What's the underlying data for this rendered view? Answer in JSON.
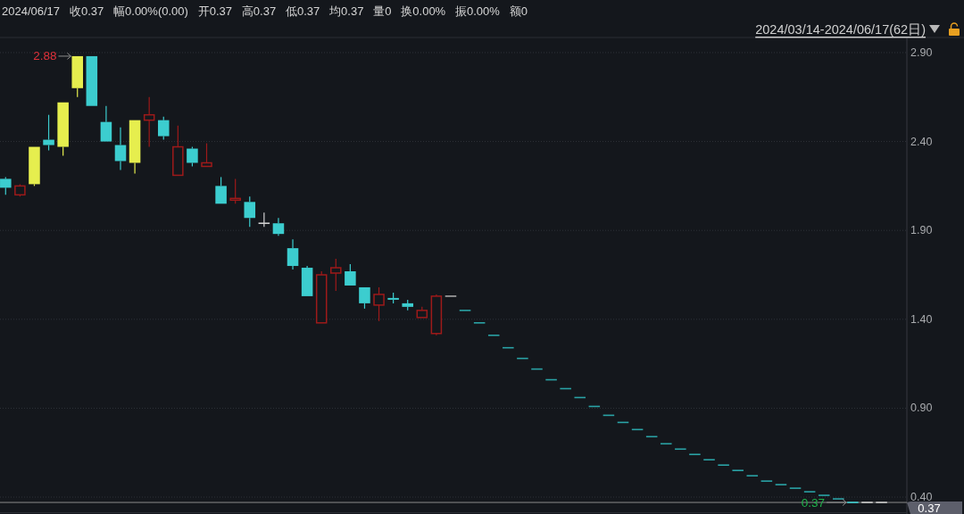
{
  "chart_data": {
    "type": "candlestick",
    "title": "2024/06/17   收0.37   幅0.00%(0.00)   开0.37   高0.37   低0.37   均0.37   量0   换0.00%   振0.00%   额0",
    "subtitle": "2024/03/14-2024/06/17(62日)",
    "categories": [
      null,
      null,
      null,
      null,
      null,
      null,
      null,
      null,
      null,
      null,
      null,
      null,
      null,
      null,
      null,
      null,
      null,
      null,
      null,
      null,
      null,
      null,
      null,
      null,
      null,
      null,
      null,
      null,
      null,
      null,
      null,
      null,
      null,
      null,
      null,
      null,
      null,
      null,
      null,
      null,
      null,
      null,
      null,
      null,
      null,
      null,
      null,
      null,
      null,
      null,
      null,
      null,
      null,
      null,
      null,
      null,
      null,
      null,
      null,
      null,
      null,
      null
    ],
    "ohlc": [
      [
        2.19,
        2.2,
        2.1,
        2.14
      ],
      [
        2.1,
        2.16,
        2.09,
        2.15
      ],
      [
        2.16,
        2.37,
        2.15,
        2.37
      ],
      [
        2.41,
        2.55,
        2.35,
        2.38
      ],
      [
        2.37,
        2.62,
        2.32,
        2.62
      ],
      [
        2.7,
        2.88,
        2.65,
        2.88
      ],
      [
        2.88,
        2.88,
        2.6,
        2.6
      ],
      [
        2.51,
        2.6,
        2.4,
        2.4
      ],
      [
        2.38,
        2.48,
        2.24,
        2.29
      ],
      [
        2.28,
        2.52,
        2.22,
        2.52
      ],
      [
        2.52,
        2.65,
        2.37,
        2.55
      ],
      [
        2.52,
        2.54,
        2.41,
        2.43
      ],
      [
        2.21,
        2.49,
        2.21,
        2.37
      ],
      [
        2.36,
        2.37,
        2.26,
        2.28
      ],
      [
        2.26,
        2.39,
        2.26,
        2.28
      ],
      [
        2.15,
        2.2,
        2.05,
        2.05
      ],
      [
        2.07,
        2.19,
        2.05,
        2.08
      ],
      [
        2.06,
        2.09,
        1.92,
        1.97
      ],
      [
        1.94,
        2.0,
        1.92,
        1.94
      ],
      [
        1.94,
        1.97,
        1.87,
        1.88
      ],
      [
        1.8,
        1.85,
        1.68,
        1.7
      ],
      [
        1.69,
        1.7,
        1.53,
        1.53
      ],
      [
        1.38,
        1.67,
        1.38,
        1.65
      ],
      [
        1.66,
        1.74,
        1.56,
        1.69
      ],
      [
        1.67,
        1.71,
        1.59,
        1.59
      ],
      [
        1.58,
        1.58,
        1.46,
        1.49
      ],
      [
        1.48,
        1.58,
        1.39,
        1.54
      ],
      [
        1.52,
        1.55,
        1.49,
        1.51
      ],
      [
        1.49,
        1.51,
        1.45,
        1.47
      ],
      [
        1.41,
        1.47,
        1.41,
        1.45
      ],
      [
        1.32,
        1.54,
        1.31,
        1.53
      ],
      [
        1.53,
        1.53,
        1.53,
        1.53
      ],
      [
        1.45,
        1.45,
        1.45,
        1.45
      ],
      [
        1.38,
        1.38,
        1.38,
        1.38
      ],
      [
        1.31,
        1.31,
        1.31,
        1.31
      ],
      [
        1.24,
        1.24,
        1.24,
        1.24
      ],
      [
        1.18,
        1.18,
        1.18,
        1.18
      ],
      [
        1.12,
        1.12,
        1.12,
        1.12
      ],
      [
        1.06,
        1.06,
        1.06,
        1.06
      ],
      [
        1.01,
        1.01,
        1.01,
        1.01
      ],
      [
        0.96,
        0.96,
        0.96,
        0.96
      ],
      [
        0.91,
        0.91,
        0.91,
        0.91
      ],
      [
        0.86,
        0.86,
        0.86,
        0.86
      ],
      [
        0.82,
        0.82,
        0.82,
        0.82
      ],
      [
        0.78,
        0.78,
        0.78,
        0.78
      ],
      [
        0.74,
        0.74,
        0.74,
        0.74
      ],
      [
        0.7,
        0.7,
        0.7,
        0.7
      ],
      [
        0.67,
        0.67,
        0.67,
        0.67
      ],
      [
        0.64,
        0.64,
        0.64,
        0.64
      ],
      [
        0.61,
        0.61,
        0.61,
        0.61
      ],
      [
        0.58,
        0.58,
        0.58,
        0.58
      ],
      [
        0.55,
        0.55,
        0.55,
        0.55
      ],
      [
        0.52,
        0.52,
        0.52,
        0.52
      ],
      [
        0.49,
        0.49,
        0.49,
        0.49
      ],
      [
        0.47,
        0.47,
        0.47,
        0.47
      ],
      [
        0.45,
        0.45,
        0.45,
        0.45
      ],
      [
        0.43,
        0.43,
        0.43,
        0.43
      ],
      [
        0.41,
        0.41,
        0.41,
        0.41
      ],
      [
        0.39,
        0.39,
        0.39,
        0.39
      ],
      [
        0.37,
        0.37,
        0.37,
        0.37
      ],
      [
        0.37,
        0.37,
        0.37,
        0.37
      ],
      [
        0.37,
        0.37,
        0.37,
        0.37
      ]
    ],
    "colors": [
      "#3ccdcf",
      "#9e1a1a",
      "#e6ee4e",
      "#3ccdcf",
      "#e6ee4e",
      "#e6ee4e",
      "#3ccdcf",
      "#3ccdcf",
      "#3ccdcf",
      "#e6ee4e",
      "#9e1a1a",
      "#3ccdcf",
      "#9e1a1a",
      "#3ccdcf",
      "#9e1a1a",
      "#3ccdcf",
      "#9e1a1a",
      "#3ccdcf",
      "#d0d0d0",
      "#3ccdcf",
      "#3ccdcf",
      "#3ccdcf",
      "#9e1a1a",
      "#9e1a1a",
      "#3ccdcf",
      "#3ccdcf",
      "#9e1a1a",
      "#3ccdcf",
      "#3ccdcf",
      "#9e1a1a",
      "#9e1a1a",
      "#a8a8a8",
      "#2aa3a6",
      "#2aa3a6",
      "#2aa3a6",
      "#2aa3a6",
      "#2aa3a6",
      "#2aa3a6",
      "#2aa3a6",
      "#2aa3a6",
      "#2aa3a6",
      "#2aa3a6",
      "#2aa3a6",
      "#2aa3a6",
      "#2aa3a6",
      "#2aa3a6",
      "#2aa3a6",
      "#2aa3a6",
      "#2aa3a6",
      "#2aa3a6",
      "#2aa3a6",
      "#2aa3a6",
      "#2aa3a6",
      "#2aa3a6",
      "#2aa3a6",
      "#2aa3a6",
      "#2aa3a6",
      "#2aa3a6",
      "#2aa3a6",
      "#3ccdcf",
      "#c8c8c8",
      "#c8c8c8"
    ],
    "ylim": [
      0.32,
      2.97
    ],
    "yticks": [
      {
        "value": 2.9,
        "label": "2.90"
      },
      {
        "value": 2.4,
        "label": "2.40"
      },
      {
        "value": 1.9,
        "label": "1.90"
      },
      {
        "value": 1.4,
        "label": "1.40"
      },
      {
        "value": 0.9,
        "label": "0.90"
      },
      {
        "value": 0.4,
        "label": "0.40"
      }
    ],
    "grid": "y",
    "tick_labels": "y",
    "ref_lines": [
      {
        "axis": "y",
        "value": 0.37,
        "label": "0.37",
        "color": "#8c8c8c"
      }
    ],
    "annotations": [
      "2.88",
      {
        "text": "0.37",
        "y": 0.37
      }
    ]
  }
}
